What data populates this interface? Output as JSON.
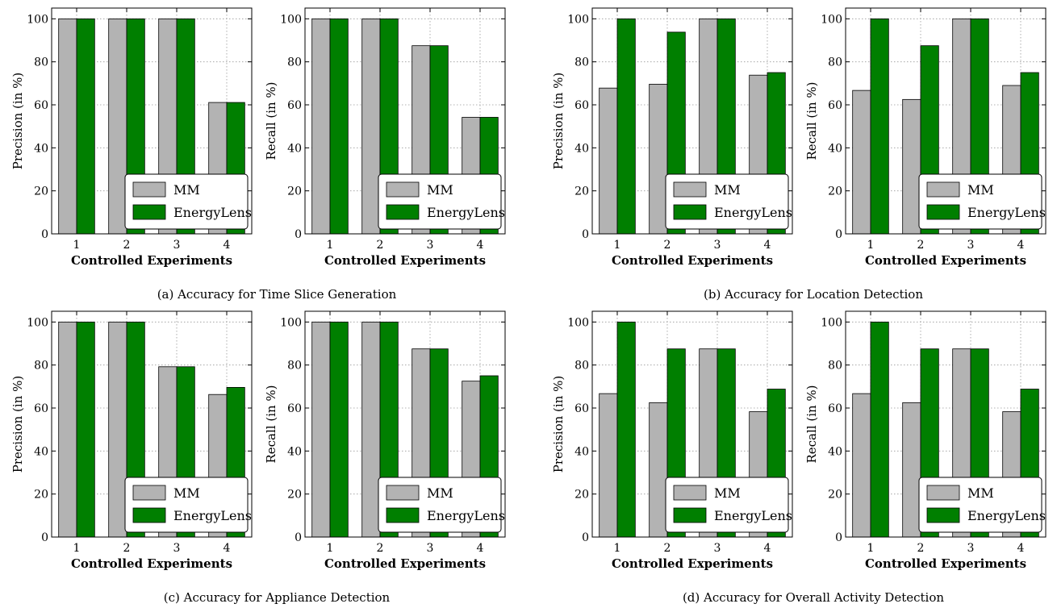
{
  "figure": {
    "panels": [
      {
        "caption": "(a) Accuracy for Time Slice Generation",
        "charts": [
          {
            "type": "bar",
            "categories": [
              "1",
              "2",
              "3",
              "4"
            ],
            "xlabel": "Controlled Experiments",
            "ylabel": "Precision (in %)",
            "ylim": [
              0,
              105
            ],
            "yticks": [
              0,
              20,
              40,
              60,
              80,
              100
            ],
            "series": [
              {
                "name": "MM",
                "values": [
                  100,
                  100,
                  100,
                  61.1
                ]
              },
              {
                "name": "EnergyLens",
                "values": [
                  100,
                  100,
                  100,
                  61.1
                ]
              }
            ]
          },
          {
            "type": "bar",
            "categories": [
              "1",
              "2",
              "3",
              "4"
            ],
            "xlabel": "Controlled Experiments",
            "ylabel": "Recall (in %)",
            "ylim": [
              0,
              105
            ],
            "yticks": [
              0,
              20,
              40,
              60,
              80,
              100
            ],
            "series": [
              {
                "name": "MM",
                "values": [
                  100,
                  100,
                  87.5,
                  54.2
                ]
              },
              {
                "name": "EnergyLens",
                "values": [
                  100,
                  100,
                  87.5,
                  54.2
                ]
              }
            ]
          }
        ]
      },
      {
        "caption": "(b) Accuracy for Location Detection",
        "charts": [
          {
            "type": "bar",
            "categories": [
              "1",
              "2",
              "3",
              "4"
            ],
            "xlabel": "Controlled Experiments",
            "ylabel": "Precision (in %)",
            "ylim": [
              0,
              105
            ],
            "yticks": [
              0,
              20,
              40,
              60,
              80,
              100
            ],
            "series": [
              {
                "name": "MM",
                "values": [
                  67.8,
                  69.6,
                  100,
                  73.8
                ]
              },
              {
                "name": "EnergyLens",
                "values": [
                  100,
                  93.8,
                  100,
                  75
                ]
              }
            ]
          },
          {
            "type": "bar",
            "categories": [
              "1",
              "2",
              "3",
              "4"
            ],
            "xlabel": "Controlled Experiments",
            "ylabel": "Recall (in %)",
            "ylim": [
              0,
              105
            ],
            "yticks": [
              0,
              20,
              40,
              60,
              80,
              100
            ],
            "series": [
              {
                "name": "MM",
                "values": [
                  66.7,
                  62.5,
                  100,
                  69
                ]
              },
              {
                "name": "EnergyLens",
                "values": [
                  100,
                  87.5,
                  100,
                  75
                ]
              }
            ]
          }
        ]
      },
      {
        "caption": "(c) Accuracy for Appliance Detection",
        "charts": [
          {
            "type": "bar",
            "categories": [
              "1",
              "2",
              "3",
              "4"
            ],
            "xlabel": "Controlled Experiments",
            "ylabel": "Precision (in %)",
            "ylim": [
              0,
              105
            ],
            "yticks": [
              0,
              20,
              40,
              60,
              80,
              100
            ],
            "series": [
              {
                "name": "MM",
                "values": [
                  100,
                  100,
                  79.2,
                  66.3
                ]
              },
              {
                "name": "EnergyLens",
                "values": [
                  100,
                  100,
                  79.2,
                  69.6
                ]
              }
            ]
          },
          {
            "type": "bar",
            "categories": [
              "1",
              "2",
              "3",
              "4"
            ],
            "xlabel": "Controlled Experiments",
            "ylabel": "Recall (in %)",
            "ylim": [
              0,
              105
            ],
            "yticks": [
              0,
              20,
              40,
              60,
              80,
              100
            ],
            "series": [
              {
                "name": "MM",
                "values": [
                  100,
                  100,
                  87.5,
                  72.5
                ]
              },
              {
                "name": "EnergyLens",
                "values": [
                  100,
                  100,
                  87.5,
                  75
                ]
              }
            ]
          }
        ]
      },
      {
        "caption": "(d) Accuracy for Overall Activity Detection",
        "charts": [
          {
            "type": "bar",
            "categories": [
              "1",
              "2",
              "3",
              "4"
            ],
            "xlabel": "Controlled Experiments",
            "ylabel": "Precision (in %)",
            "ylim": [
              0,
              105
            ],
            "yticks": [
              0,
              20,
              40,
              60,
              80,
              100
            ],
            "series": [
              {
                "name": "MM",
                "values": [
                  66.7,
                  62.5,
                  87.5,
                  58.3
                ]
              },
              {
                "name": "EnergyLens",
                "values": [
                  100,
                  87.5,
                  87.5,
                  68.8
                ]
              }
            ]
          },
          {
            "type": "bar",
            "categories": [
              "1",
              "2",
              "3",
              "4"
            ],
            "xlabel": "Controlled Experiments",
            "ylabel": "Recall (in %)",
            "ylim": [
              0,
              105
            ],
            "yticks": [
              0,
              20,
              40,
              60,
              80,
              100
            ],
            "series": [
              {
                "name": "MM",
                "values": [
                  66.7,
                  62.5,
                  87.5,
                  58.3
                ]
              },
              {
                "name": "EnergyLens",
                "values": [
                  100,
                  87.5,
                  87.5,
                  68.8
                ]
              }
            ]
          }
        ]
      }
    ]
  },
  "colors": {
    "MM": "#b3b3b3",
    "EnergyLens": "#007f00"
  },
  "legend_placement": "lower-right",
  "grid": true,
  "chart_data": [
    {
      "type": "bar",
      "categories": [
        "1",
        "2",
        "3",
        "4"
      ],
      "xlabel": "Controlled Experiments",
      "ylabel": "Precision (in %)",
      "ylim": [
        0,
        105
      ],
      "series": [
        {
          "name": "MM",
          "values": [
            100,
            100,
            100,
            61.1
          ]
        },
        {
          "name": "EnergyLens",
          "values": [
            100,
            100,
            100,
            61.1
          ]
        }
      ]
    },
    {
      "type": "bar",
      "categories": [
        "1",
        "2",
        "3",
        "4"
      ],
      "xlabel": "Controlled Experiments",
      "ylabel": "Recall (in %)",
      "ylim": [
        0,
        105
      ],
      "series": [
        {
          "name": "MM",
          "values": [
            100,
            100,
            87.5,
            54.2
          ]
        },
        {
          "name": "EnergyLens",
          "values": [
            100,
            100,
            87.5,
            54.2
          ]
        }
      ]
    },
    {
      "type": "bar",
      "categories": [
        "1",
        "2",
        "3",
        "4"
      ],
      "xlabel": "Controlled Experiments",
      "ylabel": "Precision (in %)",
      "ylim": [
        0,
        105
      ],
      "series": [
        {
          "name": "MM",
          "values": [
            67.8,
            69.6,
            100,
            73.8
          ]
        },
        {
          "name": "EnergyLens",
          "values": [
            100,
            93.8,
            100,
            75
          ]
        }
      ]
    },
    {
      "type": "bar",
      "categories": [
        "1",
        "2",
        "3",
        "4"
      ],
      "xlabel": "Controlled Experiments",
      "ylabel": "Recall (in %)",
      "ylim": [
        0,
        105
      ],
      "series": [
        {
          "name": "MM",
          "values": [
            66.7,
            62.5,
            100,
            69
          ]
        },
        {
          "name": "EnergyLens",
          "values": [
            100,
            87.5,
            100,
            75
          ]
        }
      ]
    },
    {
      "type": "bar",
      "categories": [
        "1",
        "2",
        "3",
        "4"
      ],
      "xlabel": "Controlled Experiments",
      "ylabel": "Precision (in %)",
      "ylim": [
        0,
        105
      ],
      "series": [
        {
          "name": "MM",
          "values": [
            100,
            100,
            79.2,
            66.3
          ]
        },
        {
          "name": "EnergyLens",
          "values": [
            100,
            100,
            79.2,
            69.6
          ]
        }
      ]
    },
    {
      "type": "bar",
      "categories": [
        "1",
        "2",
        "3",
        "4"
      ],
      "xlabel": "Controlled Experiments",
      "ylabel": "Recall (in %)",
      "ylim": [
        0,
        105
      ],
      "series": [
        {
          "name": "MM",
          "values": [
            100,
            100,
            87.5,
            72.5
          ]
        },
        {
          "name": "EnergyLens",
          "values": [
            100,
            100,
            87.5,
            75
          ]
        }
      ]
    },
    {
      "type": "bar",
      "categories": [
        "1",
        "2",
        "3",
        "4"
      ],
      "xlabel": "Controlled Experiments",
      "ylabel": "Precision (in %)",
      "ylim": [
        0,
        105
      ],
      "series": [
        {
          "name": "MM",
          "values": [
            66.7,
            62.5,
            87.5,
            58.3
          ]
        },
        {
          "name": "EnergyLens",
          "values": [
            100,
            87.5,
            87.5,
            68.8
          ]
        }
      ]
    },
    {
      "type": "bar",
      "categories": [
        "1",
        "2",
        "3",
        "4"
      ],
      "xlabel": "Controlled Experiments",
      "ylabel": "Recall (in %)",
      "ylim": [
        0,
        105
      ],
      "series": [
        {
          "name": "MM",
          "values": [
            66.7,
            62.5,
            87.5,
            58.3
          ]
        },
        {
          "name": "EnergyLens",
          "values": [
            100,
            87.5,
            87.5,
            68.8
          ]
        }
      ]
    }
  ]
}
